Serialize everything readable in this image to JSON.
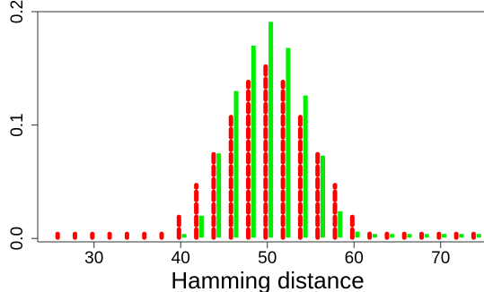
{
  "chart_data": {
    "type": "bar",
    "title": "",
    "xlabel": "Hamming distance",
    "ylabel": "",
    "xlim": [
      23.5,
      75
    ],
    "ylim": [
      -0.003,
      0.2
    ],
    "x_ticks": [
      30,
      40,
      50,
      60,
      70
    ],
    "y_ticks": [
      0.0,
      0.1,
      0.2
    ],
    "y_tick_labels": [
      "0.0",
      "0.1",
      "0.2"
    ],
    "grid": false,
    "legend": "none",
    "series": [
      {
        "color": "#ff0000",
        "style": "dashed",
        "x": [
          25.8,
          27.8,
          29.8,
          31.8,
          33.8,
          35.8,
          37.8,
          39.8,
          41.8,
          43.8,
          45.8,
          47.8,
          49.8,
          51.8,
          53.8,
          55.8,
          57.8,
          59.8,
          61.8,
          63.8,
          65.8,
          67.8,
          69.8,
          71.8,
          73.8
        ],
        "values": [
          0.0,
          0.0,
          0.0,
          0.0,
          0.001,
          0.002,
          0.004,
          0.02,
          0.047,
          0.078,
          0.107,
          0.138,
          0.153,
          0.138,
          0.107,
          0.078,
          0.047,
          0.02,
          0.004,
          0.002,
          0.001,
          0.0,
          0.0,
          0.0,
          0.0
        ]
      },
      {
        "color": "#00ee00",
        "style": "solid",
        "x": [
          40.4,
          42.4,
          44.4,
          46.4,
          48.4,
          50.4,
          52.4,
          54.4,
          56.4,
          58.4,
          60.4,
          62.4,
          64.4,
          66.4,
          68.4,
          70.4,
          72.4,
          74.4
        ],
        "values": [
          0.002,
          0.02,
          0.075,
          0.13,
          0.17,
          0.191,
          0.168,
          0.126,
          0.073,
          0.024,
          0.006,
          0.003,
          0.002,
          0.001,
          0.001,
          0.001,
          0.001,
          0.001
        ]
      }
    ]
  }
}
